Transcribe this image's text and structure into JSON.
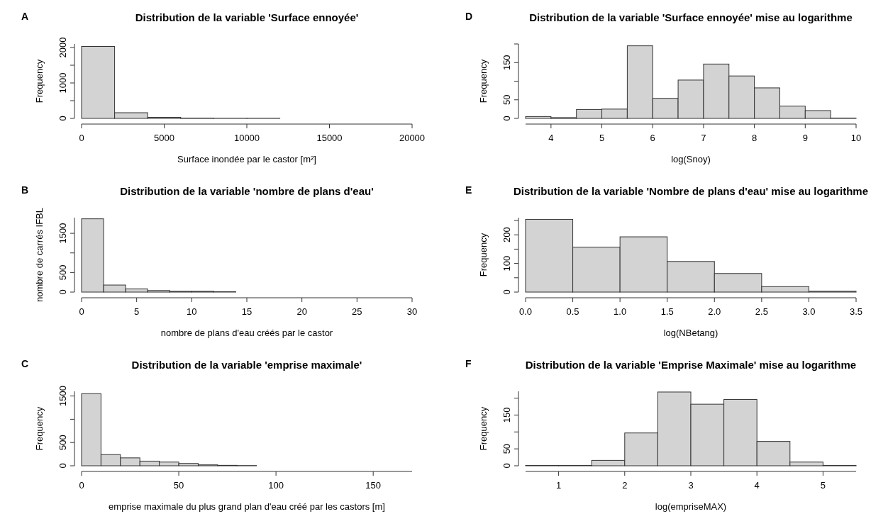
{
  "chart_data": [
    {
      "type": "histogram",
      "title": "Distribution de la variable 'Surface ennoyée'",
      "xlabel": "Surface inondée par le castor [m²]",
      "ylabel": "Frequency",
      "annotations": [
        "A"
      ],
      "color": "#d3d3d3",
      "bins": [
        0,
        2000,
        4000,
        6000,
        8000,
        10000,
        12000,
        14000,
        16000,
        18000,
        20000
      ],
      "values": [
        2030,
        160,
        30,
        10,
        5,
        5,
        0,
        0,
        0,
        0
      ],
      "xlim": [
        0,
        20000
      ],
      "xticks": [
        0,
        5000,
        10000,
        15000,
        20000
      ],
      "ylim": [
        0,
        2100
      ],
      "yticks": [
        0,
        {
          "value": 500,
          "label": null
        },
        1000,
        {
          "value": 1500,
          "label": null
        },
        2000
      ]
    },
    {
      "type": "histogram",
      "title": "Distribution de la variable 'Surface ennoyée' mise au logarithme",
      "xlabel": "log(Snoy)",
      "ylabel": "Frequency",
      "annotations": [
        "D"
      ],
      "color": "#d3d3d3",
      "bins": [
        3.5,
        4,
        4.5,
        5,
        5.5,
        6,
        6.5,
        7,
        7.5,
        8,
        8.5,
        9,
        9.5,
        10
      ],
      "values": [
        5,
        2,
        24,
        25,
        195,
        54,
        103,
        146,
        114,
        82,
        33,
        21,
        1
      ],
      "xlim": [
        3.5,
        10
      ],
      "xticks": [
        4,
        5,
        6,
        7,
        8,
        9,
        10
      ],
      "ylim": [
        0,
        200
      ],
      "yticks": [
        0,
        50,
        {
          "value": 100,
          "label": null
        },
        150,
        {
          "value": 200,
          "label": null
        }
      ]
    },
    {
      "type": "histogram",
      "title": "Distribution de la variable 'nombre de plans d'eau'",
      "xlabel": "nombre de plans d'eau créés par le castor",
      "ylabel": "nombre de carrés IFBL",
      "annotations": [
        "B"
      ],
      "color": "#d3d3d3",
      "bins": [
        0,
        2,
        4,
        6,
        8,
        10,
        12,
        14,
        16,
        18,
        20,
        22,
        24,
        26,
        28,
        30
      ],
      "values": [
        1870,
        180,
        80,
        40,
        20,
        20,
        10,
        0,
        0,
        0,
        0,
        0,
        0,
        0,
        0
      ],
      "xlim": [
        0,
        30
      ],
      "xticks": [
        0,
        5,
        10,
        15,
        20,
        25,
        30
      ],
      "ylim": [
        0,
        1900
      ],
      "yticks": [
        0,
        500,
        {
          "value": 1000,
          "label": null
        },
        1500
      ]
    },
    {
      "type": "histogram",
      "title": "Distribution de la variable 'Nombre de plans d'eau' mise au logarithme",
      "xlabel": "log(NBetang)",
      "ylabel": "Frequency",
      "annotations": [
        "E"
      ],
      "color": "#d3d3d3",
      "bins": [
        0,
        0.5,
        1,
        1.5,
        2,
        2.5,
        3,
        3.5
      ],
      "values": [
        254,
        157,
        193,
        107,
        65,
        19,
        3
      ],
      "xlim": [
        0,
        3.5
      ],
      "xticks": [
        {
          "value": 0,
          "label": "0.0"
        },
        0.5,
        {
          "value": 1,
          "label": "1.0"
        },
        1.5,
        {
          "value": 2,
          "label": "2.0"
        },
        2.5,
        {
          "value": 3,
          "label": "3.0"
        },
        3.5
      ],
      "ylim": [
        0,
        260
      ],
      "yticks": [
        0,
        {
          "value": 50,
          "label": null
        },
        100,
        {
          "value": 150,
          "label": null
        },
        200,
        {
          "value": 250,
          "label": null
        }
      ]
    },
    {
      "type": "histogram",
      "title": "Distribution de la variable 'emprise maximale'",
      "xlabel": "emprise maximale du plus grand plan d'eau créé par les castors [m]",
      "ylabel": "Frequency",
      "annotations": [
        "C"
      ],
      "color": "#d3d3d3",
      "bins": [
        0,
        10,
        20,
        30,
        40,
        50,
        60,
        70,
        80,
        90,
        100,
        110,
        120,
        130,
        140,
        150,
        160,
        170
      ],
      "values": [
        1550,
        240,
        170,
        100,
        80,
        50,
        20,
        10,
        5,
        0,
        0,
        0,
        0,
        0,
        0,
        0,
        0
      ],
      "xlim": [
        0,
        170
      ],
      "xticks": [
        0,
        50,
        100,
        150
      ],
      "ylim": [
        0,
        1600
      ],
      "yticks": [
        0,
        500,
        {
          "value": 1000,
          "label": null
        },
        1500
      ]
    },
    {
      "type": "histogram",
      "title": "Distribution de la variable 'Emprise Maximale' mise au logarithme",
      "xlabel": "log(empriseMAX)",
      "ylabel": "Frequency",
      "annotations": [
        "F"
      ],
      "color": "#d3d3d3",
      "bins": [
        0.5,
        1,
        1.5,
        2,
        2.5,
        3,
        3.5,
        4,
        4.5,
        5,
        5.5
      ],
      "values": [
        1,
        1,
        16,
        97,
        218,
        182,
        196,
        72,
        11,
        1
      ],
      "xlim": [
        0.5,
        5.5
      ],
      "xticks": [
        1,
        2,
        3,
        4,
        5
      ],
      "ylim": [
        0,
        220
      ],
      "yticks": [
        0,
        50,
        {
          "value": 100,
          "label": null
        },
        150,
        {
          "value": 200,
          "label": null
        }
      ]
    }
  ]
}
